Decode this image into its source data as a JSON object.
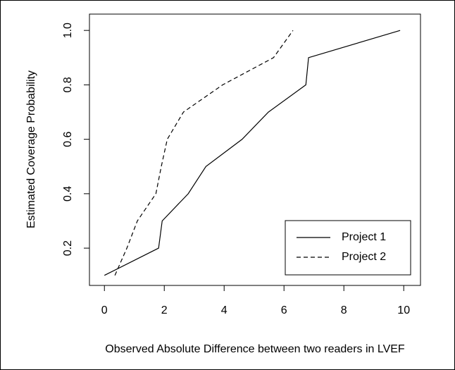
{
  "chart_data": {
    "type": "line",
    "x_label": "Observed Absolute Difference between two readers in LVEF",
    "y_label": "Estimated Coverage Probability",
    "series": [
      {
        "name": "Project 1",
        "color": "#000000",
        "dash": "solid",
        "x": [
          0,
          1.81,
          1.93,
          2.8,
          3.39,
          4.6,
          5.48,
          6.73,
          6.82,
          9.88
        ],
        "values": [
          0.1,
          0.2,
          0.3,
          0.4,
          0.5,
          0.6,
          0.7,
          0.8,
          0.9,
          1
        ]
      },
      {
        "name": "Project 2",
        "color": "#000000",
        "dash": "dashed",
        "x": [
          0.35,
          0.75,
          1.1,
          1.72,
          1.9,
          2.1,
          2.64,
          3.95,
          5.65,
          6.3
        ],
        "values": [
          0.1,
          0.2,
          0.3,
          0.4,
          0.5,
          0.6,
          0.7,
          0.8,
          0.9,
          1
        ]
      }
    ],
    "xlim": [
      -0.5,
      10.56
    ],
    "ylim": [
      0.063,
      1.06
    ],
    "xticks": [
      0,
      2,
      4,
      6,
      8,
      10
    ],
    "yticks": [
      0.2,
      0.4,
      0.6,
      0.8,
      {
        "value": 1,
        "label": "1.0"
      }
    ],
    "legend": "bottom-right",
    "grid": false
  }
}
